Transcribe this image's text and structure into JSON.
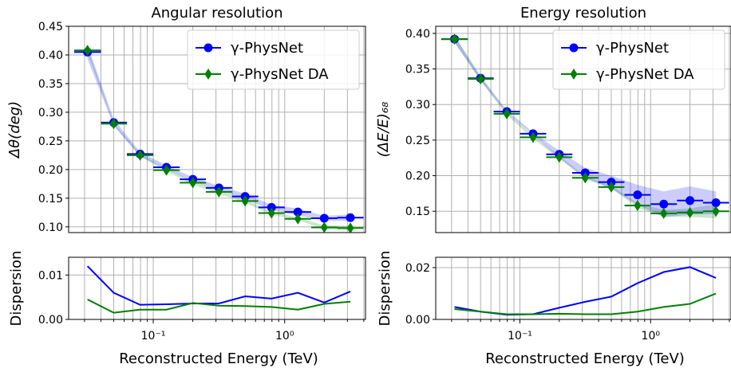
{
  "chart_data": {
    "type": "line",
    "x_scale": "log",
    "xlabel": "Reconstructed Energy (TeV)",
    "x_ticks": [
      "10⁻¹",
      "10⁰"
    ],
    "x": [
      0.0316,
      0.05,
      0.0794,
      0.126,
      0.2,
      0.316,
      0.5,
      0.794,
      1.26,
      2.0,
      3.16
    ],
    "x_err_low": [
      0.0066,
      0.01,
      0.0164,
      0.026,
      0.041,
      0.065,
      0.102,
      0.163,
      0.26,
      0.41,
      0.65
    ],
    "x_err_high": [
      0.0084,
      0.013,
      0.0206,
      0.033,
      0.052,
      0.082,
      0.13,
      0.206,
      0.33,
      0.52,
      0.82
    ],
    "panels": [
      {
        "title": "Angular resolution",
        "ylabel": "Δθ(deg)",
        "ylim": [
          0.09,
          0.45
        ],
        "y_ticks": [
          "0.10",
          "0.15",
          "0.20",
          "0.25",
          "0.30",
          "0.35",
          "0.40",
          "0.45"
        ],
        "grid": true,
        "legend": "top-right",
        "series": [
          {
            "name": "γ-PhysNet",
            "color": "#0000ff",
            "marker": "circle",
            "values": [
              0.405,
              0.282,
              0.227,
              0.204,
              0.183,
              0.168,
              0.153,
              0.134,
              0.126,
              0.115,
              0.116
            ],
            "band": [
              0.012,
              0.006,
              0.0035,
              0.0035,
              0.0035,
              0.0035,
              0.005,
              0.0045,
              0.006,
              0.004,
              0.006
            ]
          },
          {
            "name": "γ-PhysNet DA",
            "color": "#008000",
            "marker": "diamond",
            "values": [
              0.408,
              0.28,
              0.225,
              0.199,
              0.177,
              0.161,
              0.145,
              0.124,
              0.114,
              0.099,
              0.098
            ],
            "band": [
              0.0045,
              0.0015,
              0.0022,
              0.0022,
              0.0035,
              0.003,
              0.003,
              0.0028,
              0.0022,
              0.0035,
              0.004
            ]
          }
        ],
        "dispersion": {
          "ylabel": "Dispersion",
          "ylim": [
            0,
            0.014
          ],
          "y_ticks": [
            "0.00",
            "0.01"
          ],
          "series": [
            {
              "name": "γ-PhysNet",
              "color": "#0000ff",
              "values": [
                0.012,
                0.006,
                0.0033,
                0.0034,
                0.0036,
                0.0036,
                0.0052,
                0.0047,
                0.006,
                0.0038,
                0.0063
              ]
            },
            {
              "name": "γ-PhysNet DA",
              "color": "#008000",
              "values": [
                0.0045,
                0.0015,
                0.0022,
                0.0022,
                0.0037,
                0.0031,
                0.003,
                0.0028,
                0.0022,
                0.0035,
                0.004
              ]
            }
          ]
        }
      },
      {
        "title": "Energy resolution",
        "ylabel": "(ΔE/E)₆₈",
        "ylim": [
          0.12,
          0.41
        ],
        "y_ticks": [
          "0.15",
          "0.20",
          "0.25",
          "0.30",
          "0.35",
          "0.40"
        ],
        "grid": true,
        "legend": "top-right",
        "series": [
          {
            "name": "γ-PhysNet",
            "color": "#0000ff",
            "marker": "circle",
            "values": [
              0.392,
              0.337,
              0.29,
              0.259,
              0.23,
              0.204,
              0.191,
              0.173,
              0.16,
              0.165,
              0.162
            ],
            "band": [
              0.005,
              0.003,
              0.002,
              0.002,
              0.005,
              0.007,
              0.009,
              0.014,
              0.018,
              0.02,
              0.016
            ]
          },
          {
            "name": "γ-PhysNet DA",
            "color": "#008000",
            "marker": "diamond",
            "values": [
              0.392,
              0.336,
              0.287,
              0.254,
              0.226,
              0.197,
              0.184,
              0.158,
              0.147,
              0.148,
              0.15
            ],
            "band": [
              0.004,
              0.003,
              0.002,
              0.002,
              0.002,
              0.002,
              0.002,
              0.003,
              0.005,
              0.006,
              0.01
            ]
          }
        ],
        "dispersion": {
          "ylabel": "Dispersion",
          "ylim": [
            0,
            0.024
          ],
          "y_ticks": [
            "0.00",
            "0.02"
          ],
          "series": [
            {
              "name": "γ-PhysNet",
              "color": "#0000ff",
              "values": [
                0.0048,
                0.003,
                0.0018,
                0.002,
                0.0045,
                0.0068,
                0.0088,
                0.014,
                0.0183,
                0.0202,
                0.016
              ]
            },
            {
              "name": "γ-PhysNet DA",
              "color": "#008000",
              "values": [
                0.004,
                0.003,
                0.002,
                0.002,
                0.0022,
                0.002,
                0.002,
                0.003,
                0.0048,
                0.006,
                0.01
              ]
            }
          ]
        }
      }
    ]
  }
}
